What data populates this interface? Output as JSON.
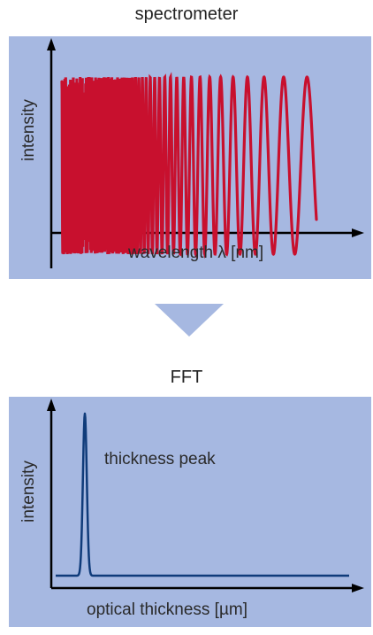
{
  "top": {
    "title": "spectrometer",
    "ylabel": "intensity",
    "xlabel": "wavelength λ [nm]",
    "panel_color": "#a6b8e1",
    "curve_color": "#c8102e"
  },
  "arrow": {
    "icon": "triangle-down-icon",
    "color": "#a6b8e1"
  },
  "bottom": {
    "title": "FFT",
    "ylabel": "intensity",
    "xlabel": "optical thickness [µm]",
    "annotation": "thickness peak",
    "panel_color": "#a6b8e1",
    "curve_color": "#0f3b7a"
  }
}
